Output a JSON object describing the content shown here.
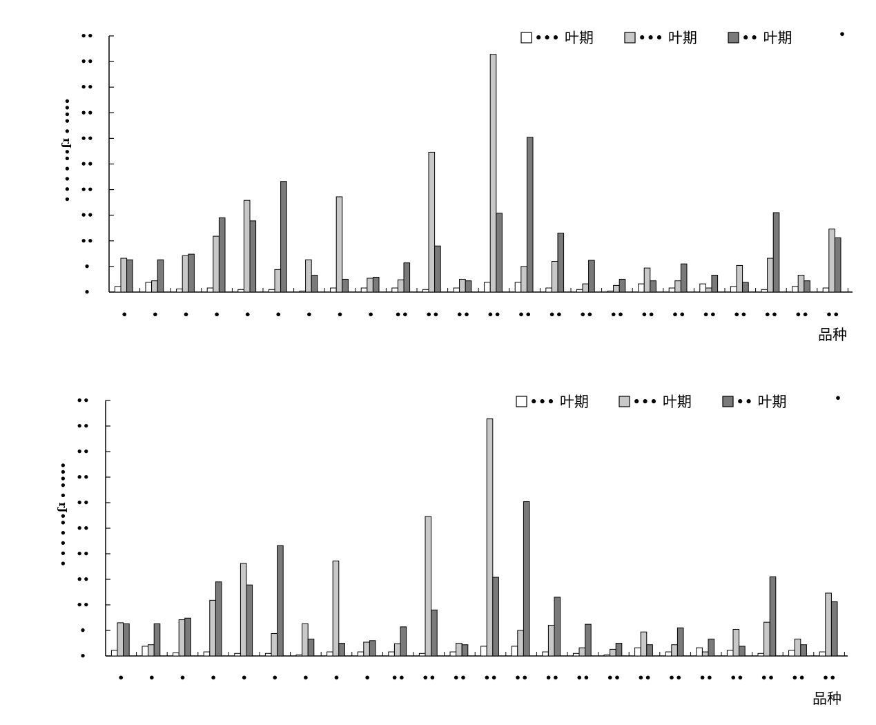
{
  "colors": {
    "series_1": "#ffffff",
    "series_2": "#c8c8c8",
    "series_3": "#7a7a7a",
    "outline": "#000000"
  },
  "chart_data": [
    {
      "type": "bar",
      "xlabel": "品种",
      "ylabel": "",
      "ylim": [
        0,
        10
      ],
      "grid": false,
      "legend_position": "top-right",
      "series": [
        {
          "name": "••• 叶期",
          "values": [
            0.22,
            0.38,
            0.12,
            0.16,
            0.1,
            0.1,
            0.04,
            0.16,
            0.16,
            0.16,
            0.1,
            0.16,
            0.38,
            0.38,
            0.16,
            0.1,
            0.04,
            0.32,
            0.16,
            0.32,
            0.22,
            0.1,
            0.22,
            0.16
          ]
        },
        {
          "name": "••• 叶期",
          "values": [
            1.32,
            0.44,
            1.42,
            2.18,
            3.58,
            0.88,
            1.26,
            3.72,
            0.54,
            0.48,
            5.46,
            0.5,
            9.28,
            1.0,
            1.2,
            0.32,
            0.26,
            0.94,
            0.44,
            0.16,
            1.04,
            1.32,
            0.66,
            2.46
          ]
        },
        {
          "name": "•• 叶期",
          "values": [
            1.26,
            1.26,
            1.48,
            2.9,
            2.78,
            4.32,
            0.66,
            0.5,
            0.58,
            1.14,
            1.8,
            0.44,
            3.08,
            6.04,
            2.3,
            1.24,
            0.5,
            0.44,
            1.1,
            0.66,
            0.38,
            3.1,
            0.44,
            2.12
          ]
        }
      ],
      "categories": [
        "•",
        "•",
        "•",
        "•",
        "•",
        "•",
        "•",
        "•",
        "•",
        "••",
        "••",
        "••",
        "••",
        "••",
        "••",
        "••",
        "••",
        "••",
        "••",
        "••",
        "••",
        "••",
        "••",
        "••"
      ],
      "ytick_labels": [
        "•",
        "•",
        "••",
        "••",
        "••",
        "••",
        "••",
        "••",
        "••",
        "••",
        "••"
      ],
      "ylabel_glyphs": "•••• • rJ•• • • • •",
      "corner_mark": "•"
    },
    {
      "type": "bar",
      "xlabel": "品种",
      "ylabel": "",
      "ylim": [
        0,
        10
      ],
      "grid": false,
      "legend_position": "top-right",
      "series": [
        {
          "name": "••• 叶期",
          "values": [
            0.22,
            0.38,
            0.12,
            0.16,
            0.1,
            0.1,
            0.04,
            0.16,
            0.16,
            0.16,
            0.1,
            0.16,
            0.38,
            0.38,
            0.16,
            0.1,
            0.04,
            0.32,
            0.16,
            0.32,
            0.22,
            0.1,
            0.22,
            0.16
          ]
        },
        {
          "name": "••• 叶期",
          "values": [
            1.3,
            0.44,
            1.42,
            2.18,
            3.62,
            0.88,
            1.26,
            3.72,
            0.54,
            0.48,
            5.46,
            0.5,
            9.28,
            1.0,
            1.2,
            0.32,
            0.26,
            0.94,
            0.44,
            0.16,
            1.04,
            1.32,
            0.66,
            2.46
          ]
        },
        {
          "name": "•• 叶期",
          "values": [
            1.26,
            1.26,
            1.48,
            2.9,
            2.78,
            4.32,
            0.66,
            0.5,
            0.6,
            1.14,
            1.8,
            0.44,
            3.08,
            6.04,
            2.3,
            1.24,
            0.5,
            0.44,
            1.1,
            0.66,
            0.38,
            3.1,
            0.44,
            2.12
          ]
        }
      ],
      "categories": [
        "•",
        "•",
        "•",
        "•",
        "•",
        "•",
        "•",
        "•",
        "•",
        "••",
        "••",
        "••",
        "••",
        "••",
        "••",
        "••",
        "••",
        "••",
        "••",
        "••",
        "••",
        "••",
        "••",
        "••"
      ],
      "ytick_labels": [
        "•",
        "•",
        "••",
        "••",
        "••",
        "••",
        "••",
        "••",
        "••",
        "••",
        "••"
      ],
      "ylabel_glyphs": "•••• • rJ•• • • • •",
      "corner_mark": "•"
    }
  ]
}
